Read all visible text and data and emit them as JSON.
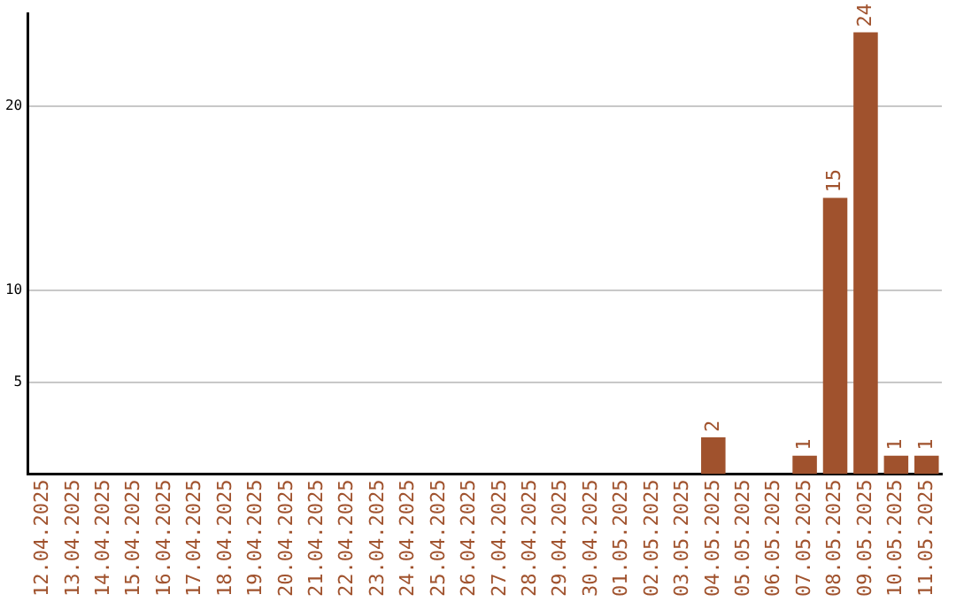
{
  "chart_data": {
    "type": "bar",
    "categories": [
      "12.04.2025",
      "13.04.2025",
      "14.04.2025",
      "15.04.2025",
      "16.04.2025",
      "17.04.2025",
      "18.04.2025",
      "19.04.2025",
      "20.04.2025",
      "21.04.2025",
      "22.04.2025",
      "23.04.2025",
      "24.04.2025",
      "25.04.2025",
      "26.04.2025",
      "27.04.2025",
      "28.04.2025",
      "29.04.2025",
      "30.04.2025",
      "01.05.2025",
      "02.05.2025",
      "03.05.2025",
      "04.05.2025",
      "05.05.2025",
      "06.05.2025",
      "07.05.2025",
      "08.05.2025",
      "09.05.2025",
      "10.05.2025",
      "11.05.2025"
    ],
    "values": [
      null,
      null,
      null,
      null,
      null,
      null,
      null,
      null,
      null,
      null,
      null,
      null,
      null,
      null,
      null,
      null,
      null,
      null,
      null,
      null,
      null,
      null,
      2,
      null,
      null,
      1,
      15,
      24,
      1,
      1
    ],
    "color": "#a0522d",
    "ylim": [
      0,
      25
    ],
    "yticks": [
      5,
      10,
      20
    ],
    "grid": "y",
    "data_labels": true,
    "legend": false
  }
}
